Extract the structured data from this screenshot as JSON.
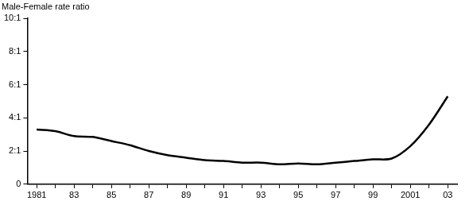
{
  "chart_data": {
    "type": "line",
    "y_label": "Male-Female rate ratio",
    "categories": [
      "1981",
      null,
      "83",
      null,
      "85",
      null,
      "87",
      null,
      "89",
      null,
      "91",
      null,
      "93",
      null,
      "95",
      null,
      "97",
      null,
      "99",
      null,
      "2001",
      null,
      "03"
    ],
    "values": [
      3.3,
      3.2,
      2.9,
      2.85,
      2.6,
      2.35,
      2.0,
      1.75,
      1.6,
      1.45,
      1.4,
      1.3,
      1.3,
      1.2,
      1.25,
      1.2,
      1.3,
      1.4,
      1.5,
      1.55,
      2.3,
      3.6,
      5.3
    ],
    "color": "#000000",
    "ylim": [
      0,
      10
    ],
    "yticks": [
      0,
      {
        "value": 2,
        "label": "2:1"
      },
      {
        "value": 4,
        "label": "4:1"
      },
      {
        "value": 6,
        "label": "6:1"
      },
      {
        "value": 8,
        "label": "8:1"
      },
      {
        "value": 10,
        "label": "10:1"
      }
    ],
    "grid": false
  }
}
